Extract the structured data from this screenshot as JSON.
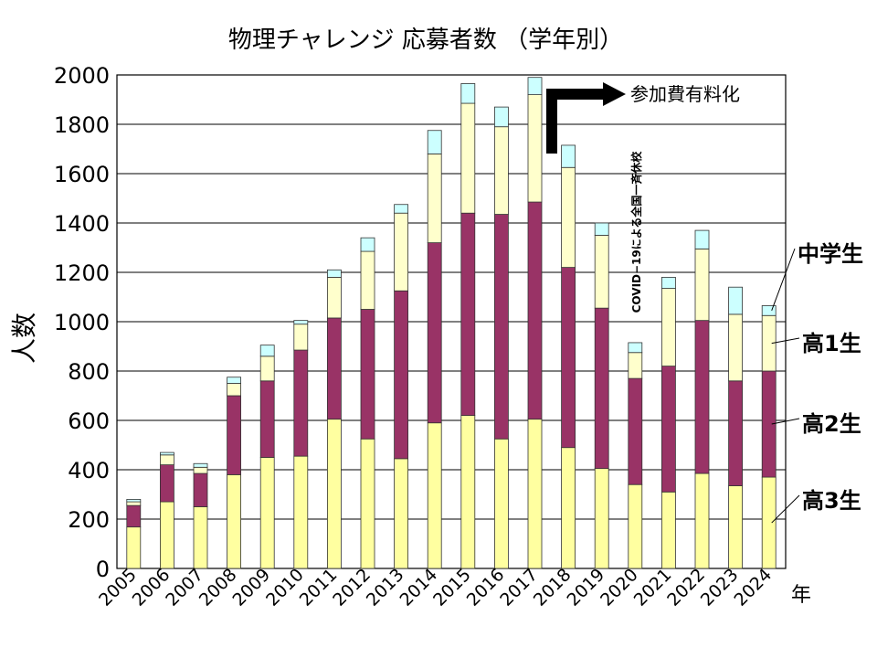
{
  "chart_data": {
    "type": "bar",
    "stacked": true,
    "title": "物理チャレンジ 応募者数 （学年別）",
    "ylabel": "人数",
    "xlabel": "年",
    "ylim": [
      0,
      2000
    ],
    "yticks": [
      0,
      200,
      400,
      600,
      800,
      1000,
      1200,
      1400,
      1600,
      1800,
      2000
    ],
    "grid": true,
    "categories": [
      "2005",
      "2006",
      "2007",
      "2008",
      "2009",
      "2010",
      "2011",
      "2012",
      "2013",
      "2014",
      "2015",
      "2016",
      "2017",
      "2018",
      "2019",
      "2020",
      "2021",
      "2022",
      "2023",
      "2024"
    ],
    "series": [
      {
        "name": "高3生",
        "color": "#FFFFA0",
        "values": [
          168,
          270,
          250,
          380,
          450,
          455,
          605,
          525,
          445,
          590,
          620,
          525,
          605,
          490,
          405,
          340,
          310,
          385,
          335,
          370
        ]
      },
      {
        "name": "高2生",
        "color": "#993366",
        "values": [
          87,
          150,
          135,
          320,
          310,
          430,
          410,
          525,
          680,
          730,
          820,
          910,
          880,
          730,
          650,
          430,
          510,
          620,
          425,
          430
        ]
      },
      {
        "name": "高1生",
        "color": "#FFFFCC",
        "values": [
          15,
          40,
          25,
          50,
          100,
          105,
          165,
          235,
          315,
          360,
          445,
          355,
          435,
          405,
          295,
          105,
          315,
          290,
          270,
          225
        ]
      },
      {
        "name": "中学生",
        "color": "#CCFFFF",
        "values": [
          10,
          10,
          15,
          25,
          45,
          15,
          30,
          55,
          35,
          95,
          80,
          80,
          70,
          90,
          50,
          40,
          45,
          75,
          110,
          40
        ]
      }
    ],
    "legend_placement": "right",
    "annotations": [
      {
        "text": "参加費有料化"
      },
      {
        "text": "COVID−19による全国一斉休校"
      }
    ]
  }
}
